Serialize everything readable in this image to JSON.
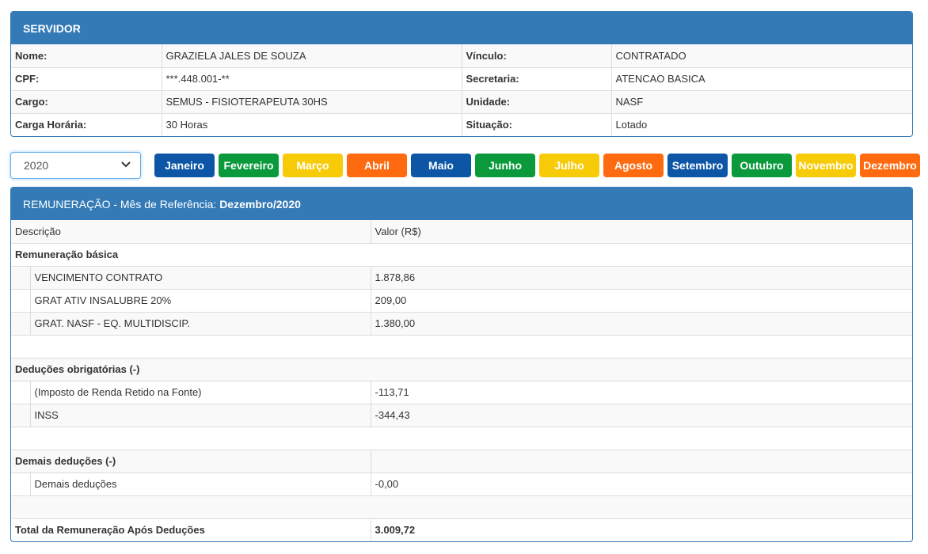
{
  "servidor": {
    "title": "SERVIDOR",
    "rows": [
      {
        "l1": "Nome:",
        "v1": "GRAZIELA JALES DE SOUZA",
        "l2": "Vínculo:",
        "v2": "CONTRATADO"
      },
      {
        "l1": "CPF:",
        "v1": "***.448.001-**",
        "l2": "Secretaria:",
        "v2": "ATENCAO BASICA"
      },
      {
        "l1": "Cargo:",
        "v1": "SEMUS - FISIOTERAPEUTA 30HS",
        "l2": "Unidade:",
        "v2": "NASF"
      },
      {
        "l1": "Carga Horária:",
        "v1": "30 Horas",
        "l2": "Situação:",
        "v2": "Lotado"
      }
    ]
  },
  "filter": {
    "year": "2020",
    "months": [
      "Janeiro",
      "Fevereiro",
      "Março",
      "Abril",
      "Maio",
      "Junho",
      "Julho",
      "Agosto",
      "Setembro",
      "Outubro",
      "Novembro",
      "Dezembro"
    ]
  },
  "colors": {
    "blue": "#0d56a6",
    "green": "#0a9a3c",
    "yellow": "#f8cb09",
    "orange": "#fe6a10",
    "panel": "#337ab7"
  },
  "remuneracao": {
    "title_prefix": "REMUNERAÇÃO - Mês de Referência: ",
    "title_ref": "Dezembro/2020",
    "col_desc": "Descrição",
    "col_valor": "Valor (R$)",
    "basica": {
      "label": "Remuneração básica",
      "items": [
        {
          "desc": "VENCIMENTO CONTRATO",
          "valor": "1.878,86"
        },
        {
          "desc": "GRAT ATIV INSALUBRE 20%",
          "valor": "209,00"
        },
        {
          "desc": "GRAT. NASF - EQ. MULTIDISCIP.",
          "valor": "1.380,00"
        }
      ]
    },
    "deducoes": {
      "label": "Deduções obrigatórias (-)",
      "items": [
        {
          "desc": "(Imposto de Renda Retido na Fonte)",
          "valor": "-113,71"
        },
        {
          "desc": "INSS",
          "valor": "-344,43"
        }
      ]
    },
    "demais": {
      "label": "Demais deduções (-)",
      "items": [
        {
          "desc": "Demais deduções",
          "valor": "-0,00"
        }
      ]
    },
    "total_label": "Total da Remuneração Após Deduções",
    "total_valor": "3.009,72"
  }
}
